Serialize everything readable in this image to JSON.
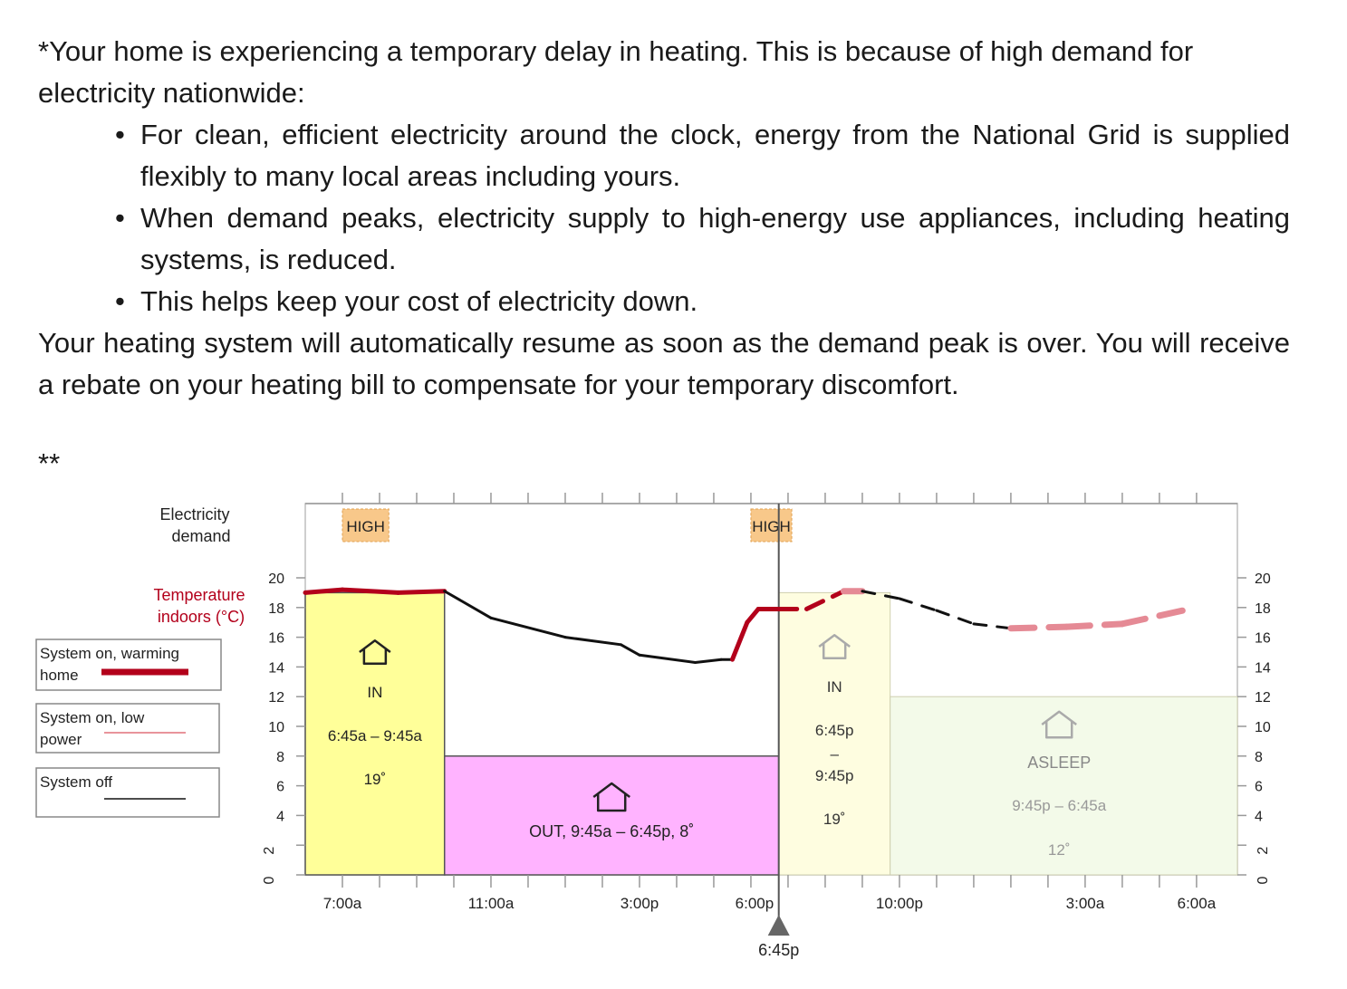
{
  "notice": {
    "intro": "*Your home is experiencing a temporary delay in heating.  This is because of high demand for electricity nationwide:",
    "bullets": [
      "For clean, efficient electricity around the clock, energy from the National Grid is supplied flexibly to many local areas including yours.",
      "When demand peaks, electricity supply to high-energy use appliances, including heating systems, is reduced.",
      "This helps keep your cost of electricity down."
    ],
    "closing": "Your heating system will automatically resume as soon as the demand peak is over.  You will receive a rebate on your heating bill to compensate for your temporary discomfort."
  },
  "footnote_marker": "**",
  "chart_data": {
    "type": "line",
    "demand_label": [
      "Electricity",
      "demand"
    ],
    "ylabel": [
      "Temperature",
      "indoors (°C)"
    ],
    "ylim": [
      0,
      20
    ],
    "yticks": [
      0,
      2,
      4,
      6,
      8,
      10,
      12,
      14,
      16,
      18,
      20
    ],
    "x_range_hours": [
      6.0,
      31.1
    ],
    "x_tick_labels": [
      {
        "label": "7:00a",
        "hour": 7
      },
      {
        "label": "11:00a",
        "hour": 11
      },
      {
        "label": "3:00p",
        "hour": 15
      },
      {
        "label": "6:00p",
        "hour": 18
      },
      {
        "label": "10:00p",
        "hour": 22
      },
      {
        "label": "3:00a",
        "hour": 27
      },
      {
        "label": "6:00a",
        "hour": 30
      }
    ],
    "current_time": {
      "label": "6:45p",
      "hour": 18.75
    },
    "high_demand_periods": [
      {
        "label": "HIGH",
        "start": 7.0,
        "end": 8.25
      },
      {
        "label": "HIGH",
        "start": 18.0,
        "end": 19.1
      }
    ],
    "schedule": [
      {
        "name": "IN",
        "lines": [
          "IN",
          "6:45a – 9:45a",
          "19˚"
        ],
        "start": 6.0,
        "end": 9.75,
        "setpoint": 19,
        "color": "#ffff99",
        "future": false
      },
      {
        "name": "OUT",
        "lines": [
          "OUT,  9:45a – 6:45p,  8˚"
        ],
        "start": 9.75,
        "end": 18.75,
        "setpoint": 8,
        "color": "#ffb3ff",
        "future": false
      },
      {
        "name": "IN",
        "lines": [
          "IN",
          "6:45p",
          "–",
          "9:45p",
          "19˚"
        ],
        "start": 18.75,
        "end": 21.75,
        "setpoint": 19,
        "color": "#fefde0",
        "future": true
      },
      {
        "name": "ASLEEP",
        "lines": [
          "ASLEEP",
          "9:45p – 6:45a",
          "12˚"
        ],
        "start": 21.75,
        "end": 31.1,
        "setpoint": 12,
        "color": "#f3fae9",
        "future": true
      }
    ],
    "legend": [
      {
        "label": [
          "System on, warming",
          "home"
        ],
        "style": "warming",
        "color": "#b3001b"
      },
      {
        "label": [
          "System on, low",
          "power"
        ],
        "style": "low",
        "color": "#e0707a"
      },
      {
        "label": [
          "System off"
        ],
        "style": "off",
        "color": "#111111"
      }
    ],
    "series": [
      {
        "name": "actual",
        "points": [
          {
            "x": 6.0,
            "y": 19.0,
            "mode": "warming"
          },
          {
            "x": 7.0,
            "y": 19.2,
            "mode": "warming"
          },
          {
            "x": 8.5,
            "y": 19.0,
            "mode": "warming"
          },
          {
            "x": 9.75,
            "y": 19.1,
            "mode": "off"
          },
          {
            "x": 11.0,
            "y": 17.3,
            "mode": "off"
          },
          {
            "x": 13.0,
            "y": 16.0,
            "mode": "off"
          },
          {
            "x": 14.5,
            "y": 15.5,
            "mode": "off"
          },
          {
            "x": 15.0,
            "y": 14.8,
            "mode": "off"
          },
          {
            "x": 16.5,
            "y": 14.3,
            "mode": "off"
          },
          {
            "x": 17.2,
            "y": 14.5,
            "mode": "off"
          },
          {
            "x": 17.5,
            "y": 14.5,
            "mode": "warming"
          },
          {
            "x": 17.9,
            "y": 17.0,
            "mode": "warming"
          },
          {
            "x": 18.2,
            "y": 17.9,
            "mode": "warming"
          },
          {
            "x": 18.75,
            "y": 17.9,
            "mode": "warming"
          }
        ]
      },
      {
        "name": "forecast",
        "points": [
          {
            "x": 18.75,
            "y": 17.9,
            "mode": "low"
          },
          {
            "x": 19.5,
            "y": 17.9,
            "mode": "low"
          },
          {
            "x": 20.5,
            "y": 19.1,
            "mode": "low"
          },
          {
            "x": 21.0,
            "y": 19.1,
            "mode": "off"
          },
          {
            "x": 22.0,
            "y": 18.6,
            "mode": "off"
          },
          {
            "x": 23.0,
            "y": 17.8,
            "mode": "off"
          },
          {
            "x": 24.0,
            "y": 16.9,
            "mode": "off"
          },
          {
            "x": 25.0,
            "y": 16.6,
            "mode": "low"
          },
          {
            "x": 26.5,
            "y": 16.7,
            "mode": "low"
          },
          {
            "x": 28.0,
            "y": 16.9,
            "mode": "low"
          },
          {
            "x": 30.0,
            "y": 18.0,
            "mode": "low"
          }
        ]
      }
    ]
  }
}
